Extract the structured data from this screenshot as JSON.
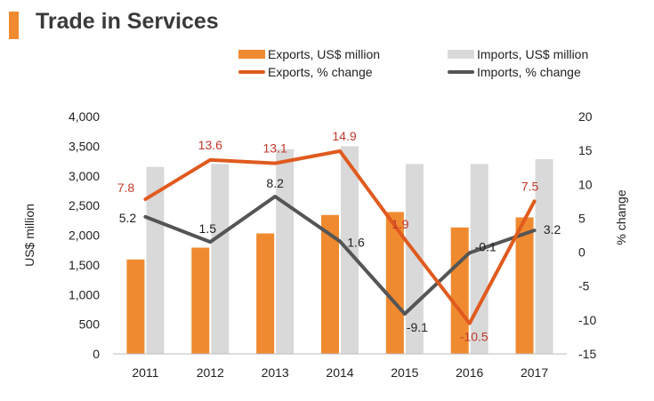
{
  "title": "Trade in Services",
  "colors": {
    "title_accent": "#f08a30",
    "exports_bar": "#f08a30",
    "imports_bar": "#d9d9d9",
    "exports_line": "#e05a1e",
    "imports_line": "#555555",
    "exports_label": "#c0392b",
    "imports_label": "#222222"
  },
  "chart_data": {
    "type": "bar",
    "title": "Trade in Services",
    "categories": [
      "2011",
      "2012",
      "2013",
      "2014",
      "2015",
      "2016",
      "2017"
    ],
    "series": [
      {
        "name": "Exports, US$ million",
        "kind": "bar",
        "axis": "left",
        "values": [
          1590,
          1790,
          2030,
          2340,
          2390,
          2130,
          2300
        ]
      },
      {
        "name": "Imports, US$ million",
        "kind": "bar",
        "axis": "left",
        "values": [
          3150,
          3200,
          3450,
          3500,
          3200,
          3200,
          3280
        ]
      },
      {
        "name": "Exports, % change",
        "kind": "line",
        "axis": "right",
        "values": [
          7.8,
          13.6,
          13.1,
          14.9,
          1.9,
          -10.5,
          7.5
        ],
        "labels": [
          "7.8",
          "13.6",
          "13.1",
          "14.9",
          "1.9",
          "-10.5",
          "7.5"
        ]
      },
      {
        "name": "Imports, % change",
        "kind": "line",
        "axis": "right",
        "values": [
          5.2,
          1.5,
          8.2,
          1.6,
          -9.1,
          -0.1,
          3.2
        ],
        "labels": [
          "5.2",
          "1.5",
          "8.2",
          "1.6",
          "-9.1",
          "-0.1",
          "3.2"
        ]
      }
    ],
    "ylabel": "US$ million",
    "y2label": "% change",
    "ylim": [
      0,
      4000
    ],
    "y2lim": [
      -15,
      20
    ],
    "yticks": [
      "0",
      "500",
      "1,000",
      "1,500",
      "2,000",
      "2,500",
      "3,000",
      "3,500",
      "4,000"
    ],
    "y2ticks": [
      "-15",
      "-10",
      "-5",
      "0",
      "5",
      "10",
      "15",
      "20"
    ],
    "legend": "top",
    "grid": false
  }
}
